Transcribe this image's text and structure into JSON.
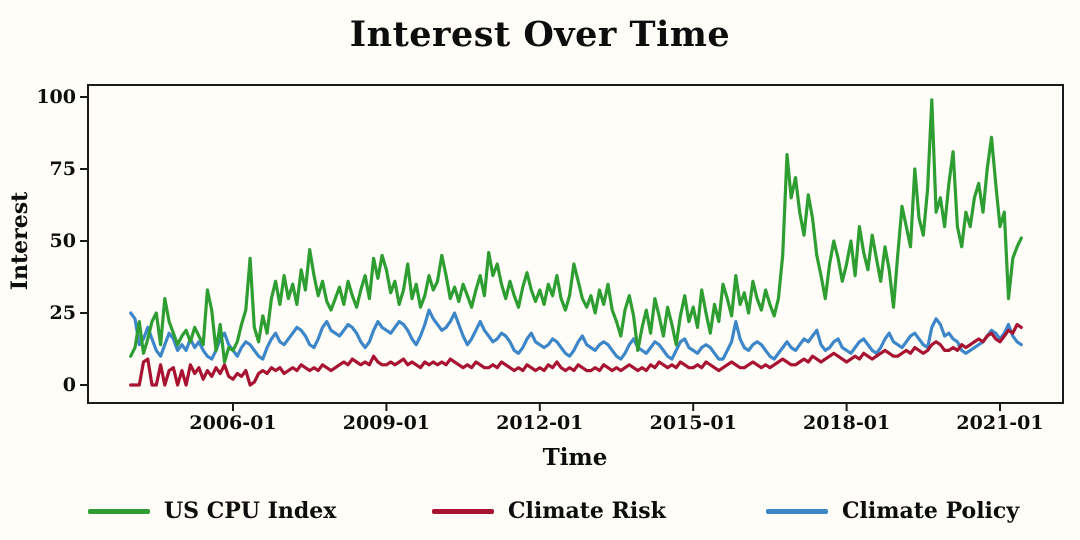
{
  "title": "Interest Over Time",
  "x_axis": {
    "label": "Time",
    "tick_labels": [
      "2006-01",
      "2009-01",
      "2012-01",
      "2015-01",
      "2018-01",
      "2021-01"
    ]
  },
  "y_axis": {
    "label": "Interest",
    "tick_values": [
      0,
      25,
      50,
      75,
      100
    ],
    "range": [
      0,
      100
    ]
  },
  "legend": [
    {
      "label": "US CPU Index",
      "color": "#2e9e32"
    },
    {
      "label": "Climate Risk",
      "color": "#a81332"
    },
    {
      "label": "Climate Policy",
      "color": "#3d87c9"
    }
  ],
  "colors": {
    "frame": "#1a1a1a",
    "background": "#fffdf8",
    "text": "#0d0d0d"
  },
  "chart_data": {
    "type": "line",
    "title": "Interest Over Time",
    "xlabel": "Time",
    "ylabel": "Interest",
    "ylim": [
      0,
      100
    ],
    "yticks": [
      0,
      25,
      50,
      75,
      100
    ],
    "xticks": [
      "2006-01",
      "2009-01",
      "2012-01",
      "2015-01",
      "2018-01",
      "2021-01"
    ],
    "grid": false,
    "legend_position": "bottom",
    "x_start": "2004-01",
    "x_end": "2021-06",
    "x_step": "1 month",
    "n_points": 210,
    "series": [
      {
        "name": "US CPU Index",
        "color": "#2e9e32",
        "values": [
          10,
          13,
          22,
          11,
          16,
          22,
          25,
          14,
          30,
          22,
          18,
          14,
          17,
          19,
          15,
          20,
          17,
          14,
          33,
          26,
          12,
          21,
          8,
          13,
          12,
          15,
          21,
          26,
          44,
          20,
          15,
          24,
          18,
          30,
          36,
          28,
          38,
          30,
          35,
          28,
          40,
          33,
          47,
          38,
          31,
          36,
          29,
          26,
          30,
          34,
          28,
          36,
          31,
          27,
          33,
          38,
          30,
          44,
          37,
          45,
          40,
          32,
          36,
          28,
          33,
          42,
          30,
          35,
          27,
          31,
          38,
          33,
          36,
          45,
          38,
          30,
          34,
          29,
          35,
          31,
          27,
          33,
          38,
          31,
          46,
          38,
          42,
          35,
          30,
          36,
          31,
          27,
          34,
          39,
          33,
          29,
          33,
          28,
          35,
          31,
          38,
          30,
          26,
          31,
          42,
          36,
          30,
          27,
          31,
          25,
          33,
          28,
          35,
          26,
          22,
          17,
          26,
          31,
          24,
          12,
          20,
          26,
          18,
          30,
          24,
          17,
          27,
          21,
          14,
          24,
          31,
          22,
          27,
          20,
          33,
          25,
          18,
          28,
          22,
          35,
          30,
          24,
          38,
          28,
          32,
          25,
          36,
          30,
          26,
          33,
          28,
          24,
          30,
          45,
          80,
          65,
          72,
          60,
          52,
          66,
          58,
          45,
          38,
          30,
          42,
          50,
          44,
          36,
          42,
          50,
          38,
          55,
          46,
          40,
          52,
          44,
          36,
          48,
          40,
          27,
          45,
          62,
          55,
          48,
          75,
          58,
          52,
          68,
          99,
          60,
          65,
          55,
          70,
          81,
          55,
          48,
          60,
          55,
          65,
          70,
          60,
          75,
          86,
          70,
          55,
          60,
          30,
          44,
          48,
          51
        ]
      },
      {
        "name": "Climate Risk",
        "color": "#a81332",
        "values": [
          0,
          0,
          0,
          8,
          9,
          0,
          0,
          7,
          0,
          5,
          6,
          0,
          5,
          0,
          7,
          4,
          6,
          2,
          5,
          3,
          6,
          4,
          7,
          3,
          2,
          4,
          3,
          5,
          0,
          1,
          4,
          5,
          4,
          6,
          5,
          6,
          4,
          5,
          6,
          5,
          7,
          6,
          5,
          6,
          5,
          7,
          6,
          5,
          6,
          7,
          8,
          7,
          9,
          8,
          7,
          8,
          7,
          10,
          8,
          7,
          7,
          8,
          7,
          8,
          9,
          7,
          8,
          7,
          6,
          8,
          7,
          8,
          7,
          8,
          7,
          9,
          8,
          7,
          6,
          7,
          6,
          8,
          7,
          6,
          6,
          7,
          6,
          8,
          7,
          6,
          5,
          6,
          5,
          7,
          6,
          5,
          6,
          5,
          7,
          6,
          8,
          6,
          5,
          6,
          5,
          7,
          6,
          5,
          5,
          6,
          5,
          7,
          6,
          5,
          6,
          5,
          6,
          7,
          6,
          5,
          6,
          5,
          7,
          6,
          8,
          7,
          6,
          7,
          6,
          8,
          7,
          6,
          6,
          7,
          6,
          8,
          7,
          6,
          5,
          6,
          7,
          8,
          7,
          6,
          6,
          7,
          8,
          7,
          6,
          7,
          6,
          7,
          8,
          9,
          8,
          7,
          7,
          8,
          9,
          8,
          10,
          9,
          8,
          9,
          10,
          11,
          10,
          9,
          8,
          9,
          10,
          9,
          11,
          10,
          9,
          10,
          11,
          12,
          11,
          10,
          10,
          11,
          12,
          11,
          13,
          12,
          11,
          12,
          14,
          15,
          14,
          12,
          12,
          13,
          12,
          14,
          13,
          14,
          15,
          16,
          15,
          17,
          18,
          16,
          15,
          17,
          19,
          18,
          21,
          20
        ]
      },
      {
        "name": "Climate Policy",
        "color": "#3d87c9",
        "values": [
          25,
          23,
          14,
          16,
          20,
          16,
          12,
          10,
          14,
          18,
          16,
          12,
          14,
          12,
          16,
          13,
          15,
          12,
          10,
          9,
          12,
          16,
          18,
          14,
          12,
          10,
          13,
          15,
          14,
          12,
          10,
          9,
          13,
          16,
          18,
          15,
          14,
          16,
          18,
          20,
          19,
          17,
          14,
          13,
          16,
          20,
          22,
          19,
          18,
          17,
          19,
          21,
          20,
          18,
          15,
          13,
          15,
          19,
          22,
          20,
          19,
          18,
          20,
          22,
          21,
          19,
          16,
          14,
          17,
          21,
          26,
          23,
          21,
          19,
          20,
          22,
          25,
          21,
          17,
          14,
          16,
          19,
          22,
          19,
          17,
          15,
          16,
          18,
          17,
          15,
          12,
          11,
          13,
          16,
          18,
          15,
          14,
          13,
          14,
          16,
          15,
          13,
          11,
          10,
          12,
          15,
          17,
          14,
          13,
          12,
          14,
          15,
          14,
          12,
          10,
          9,
          11,
          14,
          16,
          13,
          12,
          11,
          13,
          15,
          14,
          12,
          10,
          9,
          12,
          15,
          16,
          13,
          12,
          11,
          13,
          14,
          13,
          11,
          9,
          9,
          12,
          15,
          22,
          16,
          13,
          12,
          14,
          15,
          14,
          12,
          10,
          9,
          11,
          13,
          15,
          13,
          12,
          14,
          16,
          15,
          17,
          19,
          14,
          12,
          13,
          15,
          16,
          13,
          12,
          11,
          13,
          15,
          16,
          14,
          12,
          11,
          13,
          16,
          18,
          15,
          14,
          13,
          15,
          17,
          18,
          16,
          14,
          13,
          20,
          23,
          21,
          17,
          18,
          16,
          15,
          12,
          11,
          12,
          13,
          14,
          15,
          17,
          19,
          18,
          16,
          18,
          21,
          17,
          15,
          14
        ]
      }
    ]
  }
}
